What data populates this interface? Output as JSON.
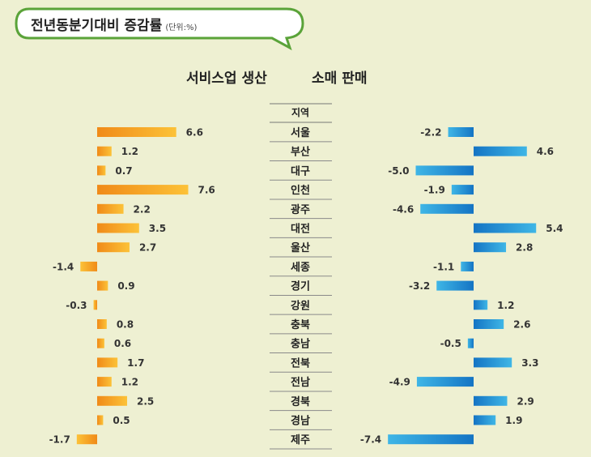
{
  "title": {
    "main": "전년동분기대비 증감률",
    "unit": "(단위:%)"
  },
  "series_headers": {
    "service": "서비스업 생산",
    "retail": "소매 판매"
  },
  "colors": {
    "service_light": "#fcc238",
    "service_dark": "#f08a18",
    "retail_light": "#3fb6e6",
    "retail_dark": "#1474c4",
    "bubble_border": "#5aa339",
    "background": "#eef0d2"
  },
  "chart_data": {
    "type": "bar",
    "orientation": "horizontal",
    "title": "전년동분기대비 증감률 (단위:%)",
    "column_header": "지역",
    "categories": [
      "서울",
      "부산",
      "대구",
      "인천",
      "광주",
      "대전",
      "울산",
      "세종",
      "경기",
      "강원",
      "충북",
      "충남",
      "전북",
      "전남",
      "경북",
      "경남",
      "제주"
    ],
    "series": [
      {
        "name": "서비스업 생산",
        "values": [
          6.6,
          1.2,
          0.7,
          7.6,
          2.2,
          3.5,
          2.7,
          -1.4,
          0.9,
          -0.3,
          0.8,
          0.6,
          1.7,
          1.2,
          2.5,
          0.5,
          -1.7
        ]
      },
      {
        "name": "소매 판매",
        "values": [
          -2.2,
          4.6,
          -5.0,
          -1.9,
          -4.6,
          5.4,
          2.8,
          -1.1,
          -3.2,
          1.2,
          2.6,
          -0.5,
          3.3,
          -4.9,
          2.9,
          1.9,
          -7.4
        ]
      }
    ]
  }
}
